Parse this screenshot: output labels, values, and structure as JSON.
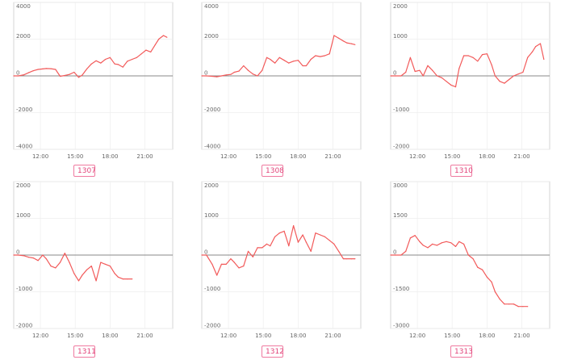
{
  "colors": {
    "line": "#f25a5a",
    "frame": "#cccccc",
    "grid": "#eeeeee",
    "zero": "#888888",
    "label": "#e2447a"
  },
  "chart_data": [
    {
      "type": "line",
      "title": "1307",
      "ylim": [
        -4000,
        4000
      ],
      "yticks": [
        "4000",
        "2000",
        "0",
        "-2000",
        "-4000"
      ],
      "ytick_values": [
        4000,
        2000,
        0,
        -2000,
        -4000
      ],
      "xtick_labels": [
        "12:00",
        "15:00",
        "18:00",
        "21:00"
      ],
      "x": [
        9.7,
        10.1,
        10.6,
        11.0,
        11.4,
        11.8,
        12.2,
        12.5,
        12.9,
        13.3,
        13.7,
        14.1,
        14.5,
        14.9,
        15.3,
        15.6,
        16.0,
        16.4,
        16.8,
        17.2,
        17.6,
        18.0,
        18.4,
        18.7,
        19.1,
        19.5,
        19.9,
        20.3,
        20.7,
        21.1,
        21.5,
        21.9,
        22.2,
        22.6,
        22.9
      ],
      "values": [
        0,
        0,
        60,
        180,
        280,
        350,
        380,
        400,
        390,
        350,
        -20,
        20,
        80,
        200,
        -80,
        40,
        380,
        650,
        820,
        700,
        900,
        1000,
        650,
        620,
        480,
        800,
        900,
        1000,
        1200,
        1400,
        1300,
        1700,
        2000,
        2200,
        2100
      ]
    },
    {
      "type": "line",
      "title": "1308",
      "ylim": [
        -4000,
        4000
      ],
      "yticks": [
        "4000",
        "2000",
        "0",
        "-2000",
        "-4000"
      ],
      "ytick_values": [
        4000,
        2000,
        0,
        -2000,
        -4000
      ],
      "xtick_labels": [
        "12:00",
        "15:00",
        "18:00",
        "21:00"
      ],
      "x": [
        9.7,
        10.1,
        10.6,
        11.0,
        11.4,
        11.8,
        12.2,
        12.5,
        12.9,
        13.3,
        13.7,
        14.1,
        14.5,
        14.9,
        15.3,
        15.6,
        16.0,
        16.4,
        16.8,
        17.2,
        17.6,
        18.0,
        18.4,
        18.7,
        19.1,
        19.5,
        19.9,
        20.3,
        20.7,
        21.1,
        21.5,
        21.9,
        22.2,
        22.6,
        22.9
      ],
      "values": [
        0,
        0,
        -20,
        -50,
        0,
        50,
        80,
        200,
        260,
        550,
        300,
        100,
        0,
        300,
        1000,
        900,
        700,
        1000,
        850,
        700,
        800,
        850,
        550,
        550,
        900,
        1100,
        1050,
        1100,
        1200,
        2200,
        2050,
        1900,
        1800,
        1750,
        1700
      ]
    },
    {
      "type": "line",
      "title": "1310",
      "ylim": [
        -2000,
        2000
      ],
      "yticks": [
        "2000",
        "1000",
        "0",
        "-1000",
        "-2000"
      ],
      "ytick_values": [
        2000,
        1000,
        0,
        -1000,
        -2000
      ],
      "xtick_labels": [
        "12:00",
        "15:00",
        "18:00",
        "21:00"
      ],
      "x": [
        9.7,
        10.1,
        10.6,
        11.0,
        11.4,
        11.8,
        12.2,
        12.5,
        12.9,
        13.3,
        13.7,
        14.1,
        14.5,
        14.9,
        15.3,
        15.6,
        16.0,
        16.4,
        16.8,
        17.2,
        17.6,
        18.0,
        18.4,
        18.7,
        19.1,
        19.5,
        19.9,
        20.3,
        20.7,
        21.1,
        21.5,
        21.9,
        22.2,
        22.6,
        22.9
      ],
      "values": [
        0,
        0,
        0,
        100,
        500,
        120,
        150,
        0,
        280,
        150,
        0,
        -50,
        -150,
        -250,
        -300,
        200,
        550,
        550,
        500,
        400,
        580,
        600,
        300,
        0,
        -150,
        -200,
        -100,
        0,
        50,
        100,
        500,
        650,
        800,
        880,
        450
      ]
    },
    {
      "type": "line",
      "title": "1311",
      "ylim": [
        -2000,
        2000
      ],
      "yticks": [
        "2000",
        "1000",
        "0",
        "-1000",
        "-2000"
      ],
      "ytick_values": [
        2000,
        1000,
        0,
        -1000,
        -2000
      ],
      "xtick_labels": [
        "12:00",
        "15:00",
        "18:00",
        "21:00"
      ],
      "x": [
        9.7,
        10.1,
        10.6,
        11.0,
        11.4,
        11.8,
        12.2,
        12.5,
        12.9,
        13.3,
        13.7,
        14.1,
        14.5,
        14.9,
        15.3,
        15.6,
        16.0,
        16.4,
        16.8,
        17.2,
        17.6,
        18.0,
        18.4,
        18.7,
        19.1,
        19.5,
        19.9
      ],
      "values": [
        0,
        0,
        -20,
        -60,
        -80,
        -150,
        0,
        -100,
        -300,
        -350,
        -200,
        50,
        -200,
        -500,
        -700,
        -550,
        -400,
        -300,
        -700,
        -200,
        -250,
        -300,
        -500,
        -600,
        -650,
        -650,
        -650
      ]
    },
    {
      "type": "line",
      "title": "1312",
      "ylim": [
        -2000,
        2000
      ],
      "yticks": [
        "2000",
        "1000",
        "0",
        "-1000",
        "-2000"
      ],
      "ytick_values": [
        2000,
        1000,
        0,
        -1000,
        -2000
      ],
      "xtick_labels": [
        "12:00",
        "15:00",
        "18:00",
        "21:00"
      ],
      "x": [
        9.7,
        10.1,
        10.6,
        11.0,
        11.4,
        11.8,
        12.2,
        12.5,
        12.9,
        13.3,
        13.7,
        14.1,
        14.5,
        14.9,
        15.3,
        15.6,
        16.0,
        16.4,
        16.8,
        17.2,
        17.6,
        18.0,
        18.4,
        18.7,
        19.1,
        19.5,
        19.9,
        20.3,
        20.7,
        21.1,
        21.5,
        21.9,
        22.2,
        22.6,
        22.9
      ],
      "values": [
        0,
        0,
        -250,
        -550,
        -250,
        -250,
        -100,
        -200,
        -350,
        -300,
        100,
        -50,
        200,
        200,
        300,
        250,
        500,
        600,
        650,
        250,
        800,
        350,
        550,
        350,
        100,
        600,
        550,
        500,
        400,
        300,
        100,
        -100,
        -100,
        -100,
        -100
      ]
    },
    {
      "type": "line",
      "title": "1313",
      "ylim": [
        -3000,
        3000
      ],
      "yticks": [
        "3000",
        "1500",
        "0",
        "-1500",
        "-3000"
      ],
      "ytick_values": [
        3000,
        1500,
        0,
        -1500,
        -3000
      ],
      "xtick_labels": [
        "12:00",
        "15:00",
        "18:00",
        "21:00"
      ],
      "x": [
        9.7,
        10.1,
        10.6,
        11.0,
        11.4,
        11.8,
        12.2,
        12.5,
        12.9,
        13.3,
        13.7,
        14.1,
        14.5,
        14.9,
        15.3,
        15.6,
        16.0,
        16.4,
        16.8,
        17.2,
        17.6,
        18.0,
        18.4,
        18.7,
        19.1,
        19.5,
        19.9,
        20.3,
        20.7,
        21.1,
        21.5
      ],
      "values": [
        0,
        0,
        0,
        150,
        700,
        800,
        550,
        400,
        300,
        450,
        400,
        500,
        550,
        500,
        350,
        550,
        450,
        0,
        -150,
        -500,
        -600,
        -900,
        -1100,
        -1500,
        -1800,
        -2000,
        -2000,
        -2000,
        -2100,
        -2100,
        -2100
      ]
    }
  ]
}
